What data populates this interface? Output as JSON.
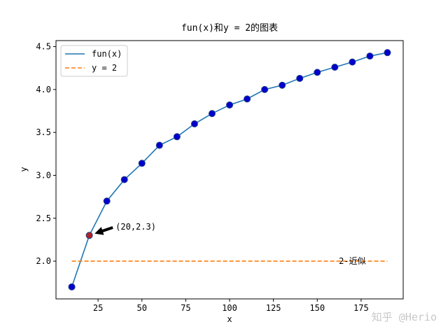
{
  "chart_data": {
    "type": "line",
    "title": "fun(x)和y = 2的图表",
    "xlabel": "x",
    "ylabel": "y",
    "xlim": [
      1,
      199
    ],
    "ylim": [
      1.56,
      4.57
    ],
    "xticks": [
      25,
      50,
      75,
      100,
      125,
      150,
      175
    ],
    "yticks": [
      {
        "value": 2,
        "label": "2.0"
      },
      2.5,
      {
        "value": 3,
        "label": "3.0"
      },
      3.5,
      {
        "value": 4,
        "label": "4.0"
      },
      4.5
    ],
    "legend": "upper left",
    "series": [
      {
        "name": "fun(x)",
        "color": "#1f77b4",
        "marker_color": "#0000cc",
        "highlight_index": 1,
        "highlight_color": "#b22222",
        "x": [
          10,
          20,
          30,
          40,
          50,
          60,
          70,
          80,
          90,
          100,
          110,
          120,
          130,
          140,
          150,
          160,
          170,
          180,
          190
        ],
        "values": [
          1.7,
          2.3,
          2.7,
          2.95,
          3.14,
          3.35,
          3.45,
          3.6,
          3.72,
          3.82,
          3.89,
          4.0,
          4.05,
          4.13,
          4.2,
          4.26,
          4.32,
          4.39,
          4.43
        ]
      },
      {
        "name": "y = 2",
        "color": "#ff7f0e",
        "dashed": true,
        "x": [
          10,
          190
        ],
        "values": [
          2,
          2
        ]
      }
    ],
    "annotations": [
      {
        "text": "(20,2.3)",
        "x": 35,
        "y": 2.4,
        "arrow_to_index": 1
      },
      {
        "text": "2-近似",
        "x": 170,
        "y": 2.0
      }
    ],
    "watermark": "知乎 @Herio"
  }
}
